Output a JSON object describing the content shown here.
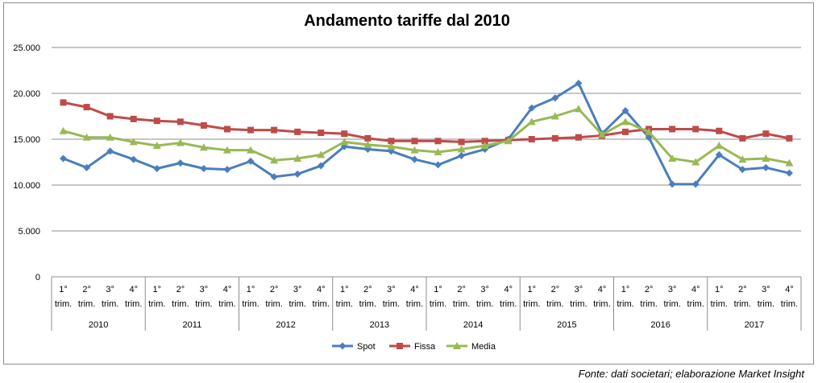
{
  "chart_data": {
    "type": "line",
    "title": "Andamento tariffe dal 2010",
    "source": "Fonte: dati societari; elaborazione Market Insight",
    "ylim": [
      0,
      25000
    ],
    "yticks": [
      0,
      5000,
      10000,
      15000,
      20000,
      25000
    ],
    "ytick_labels": [
      "0",
      "5.000",
      "10.000",
      "15.000",
      "20.000",
      "25.000"
    ],
    "quarter_labels": [
      [
        "1°",
        "trim."
      ],
      [
        "2°",
        "trim."
      ],
      [
        "3°",
        "trim."
      ],
      [
        "4°",
        "trim."
      ]
    ],
    "years": [
      "2010",
      "2011",
      "2012",
      "2013",
      "2014",
      "2015",
      "2016",
      "2017"
    ],
    "legend_position": "bottom",
    "series": [
      {
        "name": "Spot",
        "color": "#4a7ebb",
        "marker": "diamond",
        "values": [
          12900,
          11900,
          13700,
          12800,
          11800,
          12400,
          11800,
          11700,
          12600,
          10900,
          11200,
          12100,
          14200,
          13900,
          13700,
          12800,
          12200,
          13200,
          13900,
          15000,
          18400,
          19500,
          21100,
          15600,
          18100,
          15200,
          10100,
          10100,
          13300,
          11700,
          11900,
          11300
        ]
      },
      {
        "name": "Fissa",
        "color": "#be4b48",
        "marker": "square",
        "values": [
          19000,
          18500,
          17500,
          17200,
          17000,
          16900,
          16500,
          16100,
          16000,
          16000,
          15800,
          15700,
          15600,
          15100,
          14800,
          14800,
          14800,
          14700,
          14800,
          14900,
          15000,
          15100,
          15200,
          15400,
          15800,
          16100,
          16100,
          16100,
          15900,
          15100,
          15600,
          15100
        ]
      },
      {
        "name": "Media",
        "color": "#98b954",
        "marker": "triangle",
        "values": [
          15900,
          15200,
          15200,
          14700,
          14300,
          14600,
          14100,
          13800,
          13800,
          12700,
          12900,
          13300,
          14700,
          14400,
          14200,
          13800,
          13600,
          13900,
          14300,
          14800,
          16900,
          17500,
          18300,
          15500,
          16900,
          15800,
          12900,
          12500,
          14300,
          12800,
          12900,
          12400
        ]
      }
    ]
  }
}
